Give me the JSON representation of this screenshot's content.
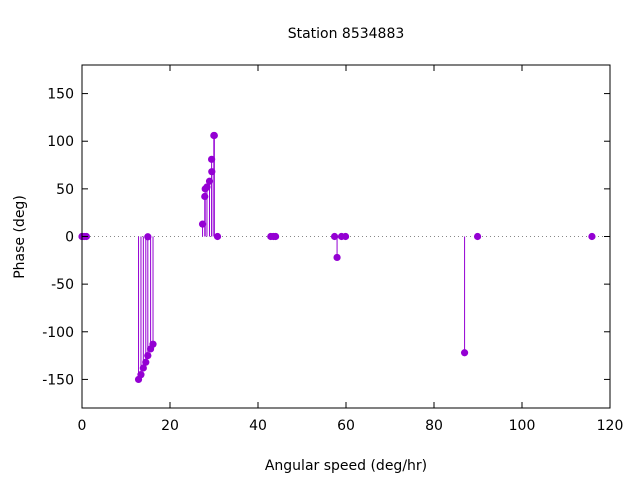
{
  "chart_data": {
    "type": "stem",
    "title": "Station 8534883",
    "xlabel": "Angular speed (deg/hr)",
    "ylabel": "Phase (deg)",
    "xlim": [
      0,
      120
    ],
    "ylim": [
      -180,
      180
    ],
    "xticks": [
      0,
      20,
      40,
      60,
      80,
      100,
      120
    ],
    "yticks": [
      -150,
      -100,
      -50,
      0,
      50,
      100,
      150
    ],
    "zero_line": "dotted",
    "legend": "none",
    "color": "#9400d3",
    "points": [
      {
        "x": 0.0,
        "y": 0
      },
      {
        "x": 0.04,
        "y": 0
      },
      {
        "x": 0.08,
        "y": 0
      },
      {
        "x": 0.5,
        "y": 0
      },
      {
        "x": 1.0,
        "y": 0
      },
      {
        "x": 12.85,
        "y": -150
      },
      {
        "x": 13.4,
        "y": -145
      },
      {
        "x": 13.94,
        "y": -138
      },
      {
        "x": 14.5,
        "y": -132
      },
      {
        "x": 14.96,
        "y": -0.3
      },
      {
        "x": 14.96,
        "y": -125
      },
      {
        "x": 15.59,
        "y": -118
      },
      {
        "x": 16.14,
        "y": -113
      },
      {
        "x": 27.4,
        "y": 13
      },
      {
        "x": 27.9,
        "y": 42
      },
      {
        "x": 28.0,
        "y": 50
      },
      {
        "x": 28.4,
        "y": 52
      },
      {
        "x": 28.98,
        "y": 58
      },
      {
        "x": 29.5,
        "y": 68
      },
      {
        "x": 29.46,
        "y": 81
      },
      {
        "x": 29.96,
        "y": 106
      },
      {
        "x": 30.08,
        "y": 106
      },
      {
        "x": 30.8,
        "y": 0
      },
      {
        "x": 42.9,
        "y": 0
      },
      {
        "x": 43.5,
        "y": 0
      },
      {
        "x": 44.0,
        "y": 0
      },
      {
        "x": 57.4,
        "y": 0
      },
      {
        "x": 57.97,
        "y": -22
      },
      {
        "x": 58.98,
        "y": 0
      },
      {
        "x": 59.9,
        "y": 0
      },
      {
        "x": 86.95,
        "y": -122
      },
      {
        "x": 89.9,
        "y": 0
      },
      {
        "x": 115.9,
        "y": 0
      }
    ]
  }
}
